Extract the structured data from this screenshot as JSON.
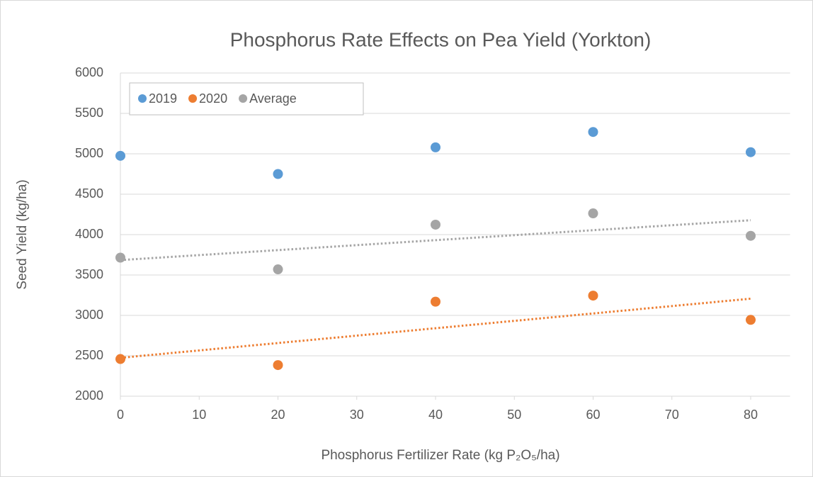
{
  "chart_data": {
    "type": "scatter",
    "title": "Phosphorus Rate Effects on Pea Yield (Yorkton)",
    "x_label": "Phosphorus Fertilizer Rate (kg P₂O₅/ha)",
    "y_label": "Seed Yield (kg/ha)",
    "x": [
      0,
      20,
      40,
      60,
      80
    ],
    "series": [
      {
        "name": "2019",
        "color": "#5b9bd5",
        "values": [
          4975,
          4750,
          5080,
          5270,
          5020
        ]
      },
      {
        "name": "2020",
        "color": "#ed7d31",
        "values": [
          2460,
          2385,
          3170,
          3245,
          2945
        ],
        "trendline": "linear"
      },
      {
        "name": "Average",
        "color": "#a5a5a5",
        "values": [
          3715,
          3570,
          4123,
          4263,
          3985
        ],
        "trendline": "linear"
      }
    ],
    "xlim": [
      0,
      85
    ],
    "xticks": [
      0,
      10,
      20,
      30,
      40,
      50,
      60,
      70,
      80
    ],
    "ylim": [
      2000,
      6000
    ],
    "yticks": [
      2000,
      2500,
      3000,
      3500,
      4000,
      4500,
      5000,
      5500,
      6000
    ],
    "grid": true,
    "legend": "top-left"
  }
}
